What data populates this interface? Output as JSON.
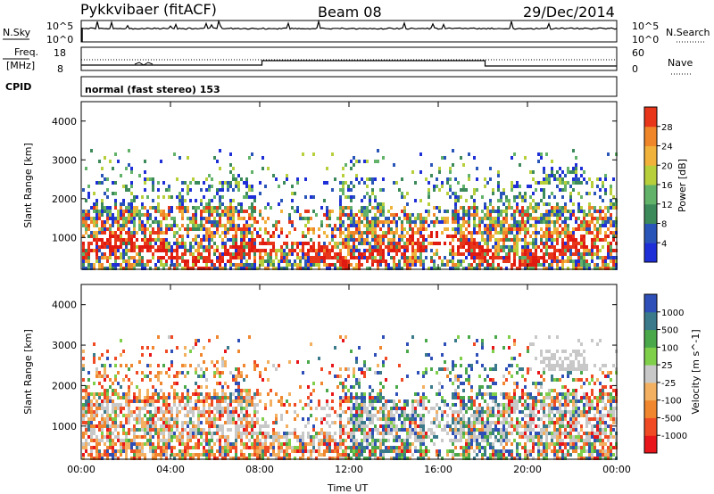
{
  "header": {
    "station": "Pykkvibaer (fitACF)",
    "beam": "Beam 08",
    "date": "29/Dec/2014"
  },
  "nsky_panel": {
    "left_label": "N.Sky",
    "right_label": "N.Search",
    "left_ticks": [
      "10^5",
      "10^0"
    ],
    "right_ticks": [
      "10^5",
      "10^0"
    ]
  },
  "freq_panel": {
    "left_label_1": "Freq.",
    "left_label_2": "[MHz]",
    "right_label": "Nave",
    "left_ticks": [
      "18",
      "8"
    ],
    "right_ticks": [
      "60",
      "0"
    ]
  },
  "cpid_panel": {
    "label": "CPID",
    "text": "normal (fast stereo) 153"
  },
  "colors": {
    "power": [
      "#1f2fd8",
      "#2a55b8",
      "#3c8a5a",
      "#62b26a",
      "#b8cf3c",
      "#f0b23a",
      "#f0862a",
      "#e8361a",
      "#e01a10"
    ],
    "velocity": [
      "#e8161a",
      "#f04a24",
      "#f0862e",
      "#f2b060",
      "#c8c8c8",
      "#7fcf4a",
      "#4aa84a",
      "#3a7a8a",
      "#2f4fb8"
    ]
  },
  "chart_data": [
    {
      "type": "heatmap",
      "name": "power",
      "xlabel": "Time UT",
      "ylabel": "Slant Range [km]",
      "colorbar_label": "Power [dB]",
      "colorbar_ticks": [
        "4",
        "8",
        "12",
        "16",
        "20",
        "24",
        "28"
      ],
      "xlim": [
        0,
        24
      ],
      "ylim": [
        180,
        4500
      ],
      "x_ticks": [
        "00:00",
        "04:00",
        "08:00",
        "12:00",
        "16:00",
        "20:00",
        "00:00"
      ],
      "y_ticks": [
        "1000",
        "2000",
        "3000",
        "4000"
      ]
    },
    {
      "type": "heatmap",
      "name": "velocity",
      "xlabel": "Time UT",
      "ylabel": "Slant Range [km]",
      "colorbar_label": "Velocity [m s^-1]",
      "colorbar_ticks": [
        "-1000",
        "-500",
        "-100",
        "-25",
        "25",
        "100",
        "500",
        "1000"
      ],
      "xlim": [
        0,
        24
      ],
      "ylim": [
        180,
        4500
      ],
      "x_ticks": [
        "00:00",
        "04:00",
        "08:00",
        "12:00",
        "16:00",
        "20:00",
        "00:00"
      ],
      "y_ticks": [
        "1000",
        "2000",
        "3000",
        "4000"
      ]
    }
  ]
}
